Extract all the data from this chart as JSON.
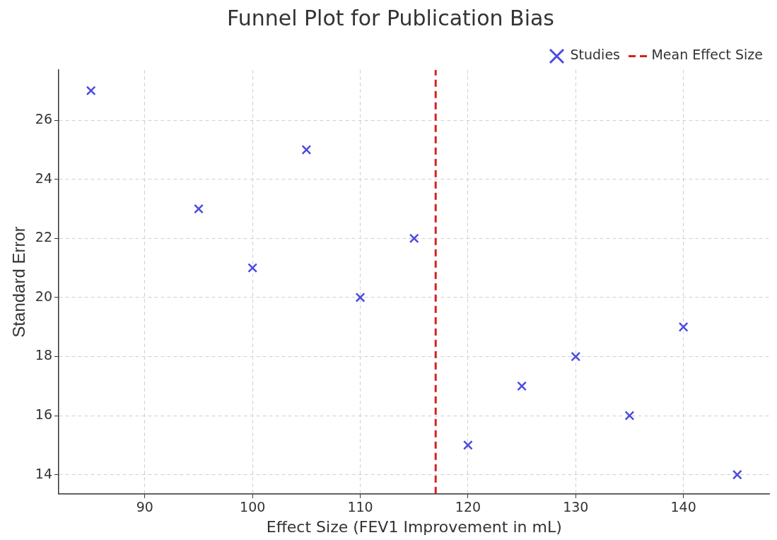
{
  "chart_data": {
    "type": "scatter",
    "title": "Funnel Plot for Publication Bias",
    "xlabel": "Effect Size (FEV1 Improvement in mL)",
    "ylabel": "Standard Error",
    "x": [
      85,
      95,
      100,
      105,
      110,
      115,
      120,
      125,
      130,
      135,
      140,
      145
    ],
    "series": [
      {
        "name": "Studies",
        "color": "#4b4be0",
        "values": [
          27,
          23,
          21,
          25,
          20,
          22,
          15,
          17,
          18,
          16,
          19,
          14
        ]
      }
    ],
    "ref_lines": [
      {
        "axis": "x",
        "value": 117,
        "label": "Mean Effect Size",
        "color": "#d62020",
        "line_style": "dashed"
      }
    ],
    "xlim": [
      82,
      148
    ],
    "xticks": [
      90,
      100,
      110,
      120,
      130,
      140
    ],
    "ylim": [
      13.35,
      27.7
    ],
    "yticks": [
      14,
      16,
      18,
      20,
      22,
      24,
      26
    ],
    "grid": true,
    "legend": "top right",
    "marker": "cross"
  }
}
